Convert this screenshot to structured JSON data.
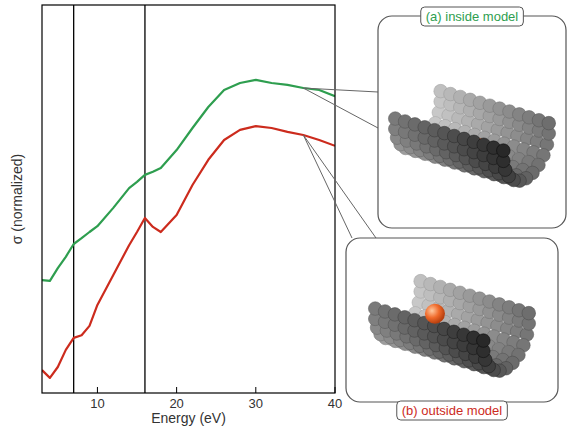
{
  "chart_data": {
    "type": "line",
    "x_label": "Energy (eV)",
    "y_label": "σ (normalized)",
    "x": [
      3,
      4,
      5,
      6,
      7,
      8,
      9,
      10,
      12,
      14,
      15,
      16,
      17,
      18,
      20,
      22,
      24,
      26,
      28,
      30,
      32,
      34,
      36,
      38,
      40
    ],
    "xlim": [
      3,
      40
    ],
    "xticks": [
      10,
      20,
      30,
      40
    ],
    "ylim": [
      0,
      10
    ],
    "tick_labels": "x",
    "grid": false,
    "legend": "right",
    "vlines": [
      7,
      16
    ],
    "series": [
      {
        "name": "(a) inside model",
        "color": "#2e9e4f",
        "values": [
          2.91,
          2.89,
          3.22,
          3.51,
          3.84,
          3.99,
          4.15,
          4.3,
          4.77,
          5.28,
          5.44,
          5.62,
          5.7,
          5.8,
          6.26,
          6.83,
          7.37,
          7.81,
          7.99,
          8.07,
          7.99,
          7.94,
          7.86,
          7.81,
          7.65
        ]
      },
      {
        "name": "(b) outside model",
        "color": "#cc2b1d",
        "values": [
          0.59,
          0.39,
          0.67,
          1.11,
          1.42,
          1.49,
          1.73,
          2.27,
          3.04,
          3.81,
          4.15,
          4.51,
          4.28,
          4.15,
          4.59,
          5.36,
          6.01,
          6.52,
          6.78,
          6.88,
          6.83,
          6.73,
          6.65,
          6.52,
          6.37
        ]
      }
    ]
  }
}
